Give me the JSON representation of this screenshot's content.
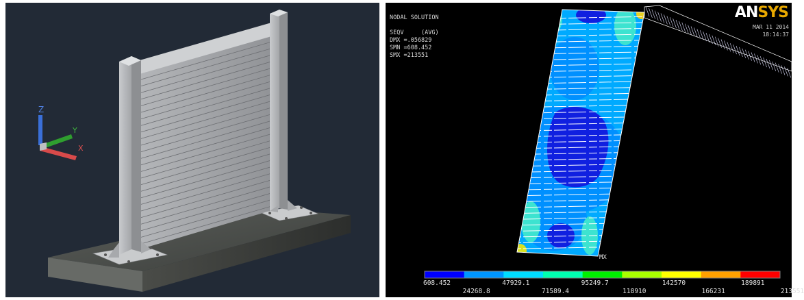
{
  "cad_view": {
    "axis_labels": {
      "z": "Z",
      "y": "Y",
      "x": "X"
    }
  },
  "fea_view": {
    "brand": {
      "part1": "AN",
      "part2": "SYS"
    },
    "date": "MAR 11 2014",
    "time": "18:14:37",
    "info": {
      "title": "NODAL SOLUTION",
      "result": "SEQV     (AVG)",
      "dmx": "DMX =.056829",
      "smn": "SMN =608.452",
      "smx": "SMX =213551"
    },
    "marker_mx": "MX",
    "legend": {
      "colors": [
        "#0000ff",
        "#0096ff",
        "#00dcff",
        "#00ffb0",
        "#00f000",
        "#a8ff00",
        "#ffff00",
        "#ffa000",
        "#ff0000"
      ],
      "upper_values": [
        "608.452",
        "47929.1",
        "95249.7",
        "142570",
        "189891"
      ],
      "lower_values": [
        "24268.8",
        "71589.4",
        "118910",
        "166231",
        "213551"
      ]
    }
  }
}
